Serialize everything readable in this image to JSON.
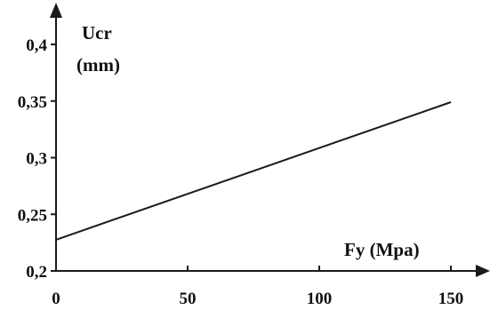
{
  "chart_data": {
    "type": "line",
    "ylabel": "Ucr",
    "yunit": "(mm)",
    "xlabel": "Fy (Mpa)",
    "xlim": [
      0,
      150
    ],
    "ylim": [
      0.2,
      0.4
    ],
    "x_ticks": [
      {
        "value": 0,
        "label": "0"
      },
      {
        "value": 50,
        "label": "50"
      },
      {
        "value": 100,
        "label": "100"
      },
      {
        "value": 150,
        "label": "150"
      }
    ],
    "y_ticks": [
      {
        "value": 0.2,
        "label": "0,2"
      },
      {
        "value": 0.25,
        "label": "0,25"
      },
      {
        "value": 0.3,
        "label": "0,3"
      },
      {
        "value": 0.35,
        "label": "0,35"
      },
      {
        "value": 0.4,
        "label": "0,4"
      }
    ],
    "series": [
      {
        "x": [
          0,
          150
        ],
        "y": [
          0.2275,
          0.349
        ]
      }
    ],
    "grid": false,
    "line_color": "#1a1a1a",
    "axis_color": "#1a1a1a"
  }
}
